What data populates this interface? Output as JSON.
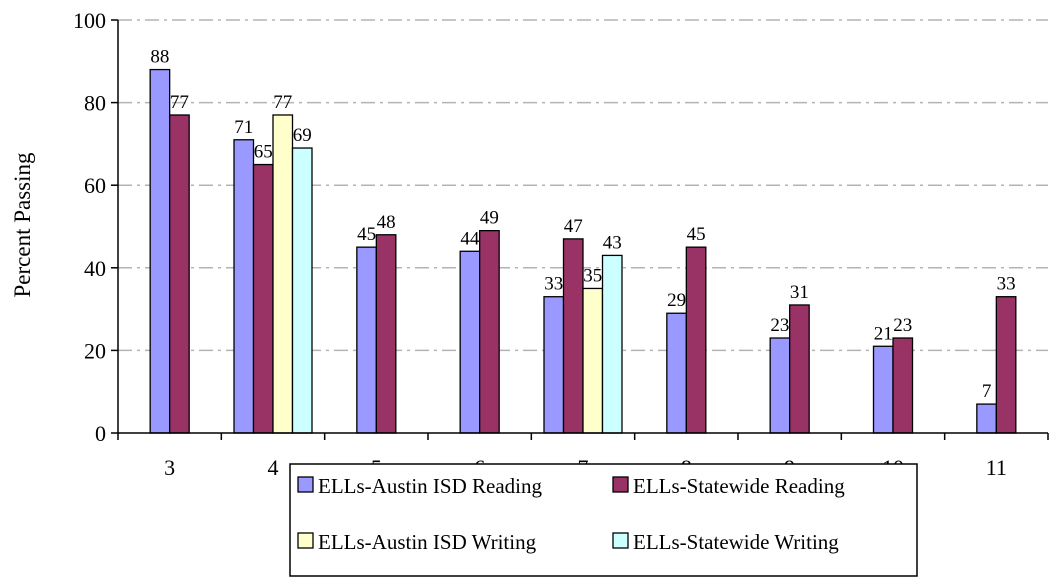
{
  "chart_data": {
    "type": "bar",
    "title": "",
    "xlabel": "",
    "ylabel": "Percent Passing",
    "ylim": [
      0,
      100
    ],
    "yticks": [
      0,
      20,
      40,
      60,
      80,
      100
    ],
    "grid": true,
    "legend_position": "bottom",
    "categories": [
      "3",
      "4",
      "5",
      "6",
      "7",
      "8",
      "9",
      "10",
      "11"
    ],
    "series": [
      {
        "name": "ELLs-Austin ISD Reading",
        "color": "#9999ff",
        "values": [
          88,
          71,
          45,
          44,
          33,
          29,
          23,
          21,
          7
        ]
      },
      {
        "name": "ELLs-Statewide Reading",
        "color": "#993366",
        "values": [
          77,
          65,
          48,
          49,
          47,
          45,
          31,
          23,
          33
        ]
      },
      {
        "name": "ELLs-Austin ISD Writing",
        "color": "#ffffcc",
        "values": [
          null,
          77,
          null,
          null,
          35,
          null,
          null,
          null,
          null
        ]
      },
      {
        "name": "ELLs-Statewide Writing",
        "color": "#ccffff",
        "values": [
          null,
          69,
          null,
          null,
          43,
          null,
          null,
          null,
          null
        ]
      }
    ]
  }
}
